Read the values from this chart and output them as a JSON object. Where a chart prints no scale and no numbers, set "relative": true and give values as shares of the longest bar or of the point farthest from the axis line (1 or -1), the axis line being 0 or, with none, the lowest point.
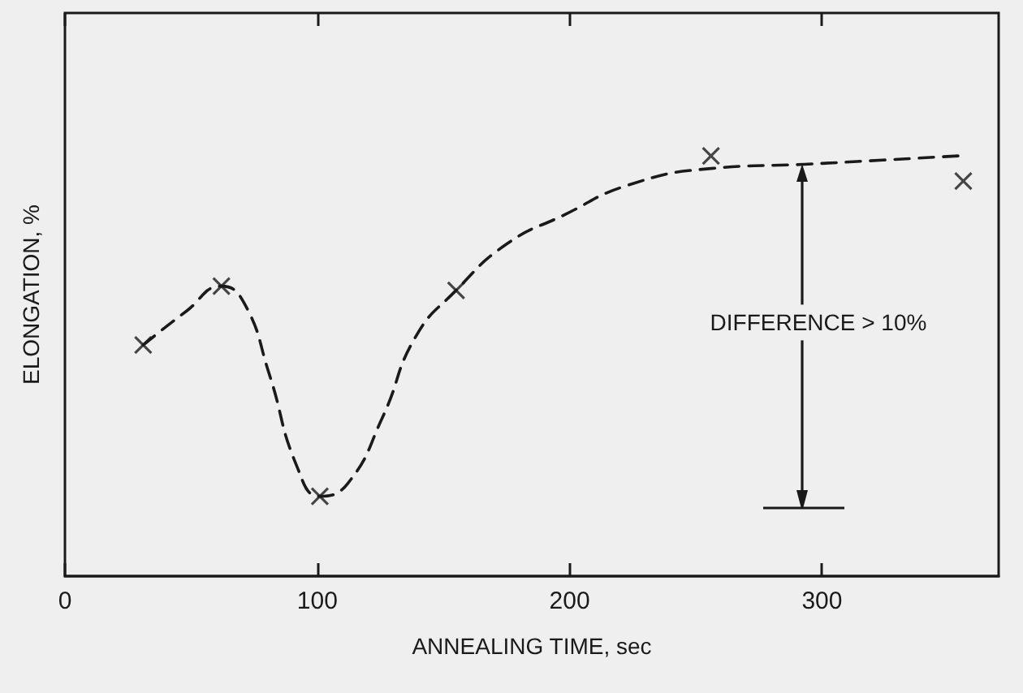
{
  "chart_data": {
    "type": "scatter",
    "xlabel": "ANNEALING TIME, sec",
    "ylabel": "ELONGATION, %",
    "relative": true,
    "xlim": [
      0,
      370
    ],
    "xticks": [
      0,
      100,
      200,
      300
    ],
    "grid": false,
    "marker": "cross",
    "annotations": [
      "DIFFERENCE > 10%"
    ],
    "series": [
      {
        "color": "#1a1a1a",
        "x": [
          31,
          62,
          101,
          155,
          256,
          356
        ],
        "values": [
          0.55,
          0.69,
          0.19,
          0.68,
          1,
          0.94
        ]
      },
      {
        "type": "line",
        "color": "#1a1a1a",
        "marker": "none",
        "line_style": "dashed",
        "x": [
          31,
          48,
          62,
          71,
          81,
          92,
          101,
          112,
          126,
          139,
          155,
          175,
          198,
          223,
          256,
          293,
          324,
          354
        ],
        "values": [
          0.55,
          0.63,
          0.69,
          0.65,
          0.48,
          0.26,
          0.19,
          0.22,
          0.38,
          0.57,
          0.68,
          0.79,
          0.86,
          0.93,
          0.97,
          0.98,
          0.99,
          1
        ]
      }
    ]
  }
}
